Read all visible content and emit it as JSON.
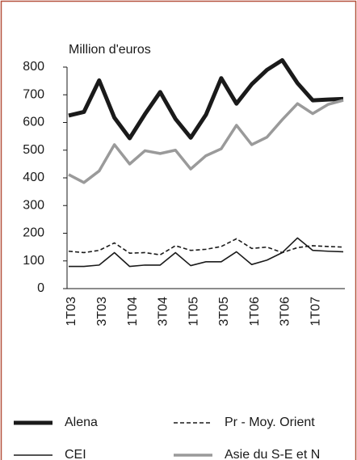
{
  "chart_data": {
    "type": "line",
    "title": "Million d'euros",
    "categories": [
      "1T03",
      null,
      "3T03",
      null,
      "1T04",
      null,
      "3T04",
      null,
      "1T05",
      null,
      "3T05",
      null,
      "1T06",
      null,
      "3T06",
      null,
      "1T07",
      null,
      null
    ],
    "series": [
      {
        "name": "Alena",
        "color": "#1a1a1a",
        "width": 5,
        "dash": false,
        "values": [
          625,
          638,
          752,
          617,
          543,
          630,
          710,
          613,
          545,
          628,
          760,
          668,
          738,
          790,
          825,
          742,
          680,
          683,
          685
        ]
      },
      {
        "name": "Pr - Moy. Orient",
        "color": "#1a1a1a",
        "width": 1.6,
        "dash": true,
        "values": [
          135,
          130,
          138,
          165,
          128,
          130,
          122,
          155,
          138,
          142,
          152,
          180,
          145,
          150,
          130,
          148,
          155,
          152,
          150
        ]
      },
      {
        "name": "CEI",
        "color": "#1a1a1a",
        "width": 1.6,
        "dash": false,
        "values": [
          80,
          80,
          85,
          130,
          80,
          85,
          85,
          130,
          83,
          97,
          97,
          133,
          87,
          103,
          130,
          183,
          138,
          135,
          133
        ]
      },
      {
        "name": "Asie du S-E et N",
        "color": "#9a9a9a",
        "width": 3.5,
        "dash": false,
        "values": [
          412,
          383,
          425,
          520,
          450,
          498,
          488,
          500,
          432,
          480,
          505,
          590,
          520,
          547,
          610,
          668,
          632,
          665,
          680
        ]
      }
    ],
    "ylim": [
      0,
      800
    ],
    "yticks": [
      0,
      100,
      200,
      300,
      400,
      500,
      600,
      700,
      800
    ]
  }
}
